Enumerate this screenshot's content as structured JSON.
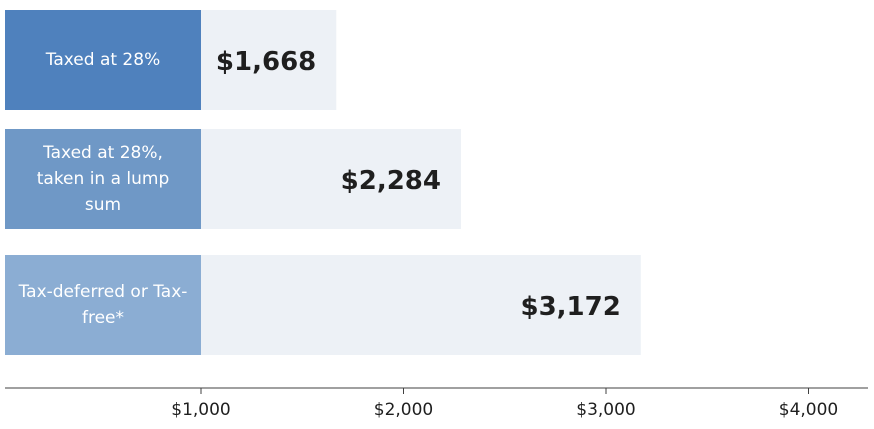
{
  "chart_data": {
    "type": "bar",
    "orientation": "horizontal",
    "categories": [
      "Taxed at 28%",
      "Taxed at 28%, taken in a lump sum",
      "Tax-deferred or Tax-free*"
    ],
    "values": [
      1668,
      2284,
      3172
    ],
    "value_labels": [
      "$1,668",
      "$2,284",
      "$3,172"
    ],
    "x_ticks": [
      1000,
      2000,
      3000,
      4000
    ],
    "x_tick_labels": [
      "$1,000",
      "$2,000",
      "$3,000",
      "$4,000"
    ],
    "xlim": [
      0,
      4300
    ],
    "grid": false,
    "colors": {
      "label_boxes": [
        "#4f81bd",
        "#6f98c6",
        "#8badd3"
      ],
      "bar_fill": "#edf1f6",
      "axis": "#404040"
    }
  }
}
